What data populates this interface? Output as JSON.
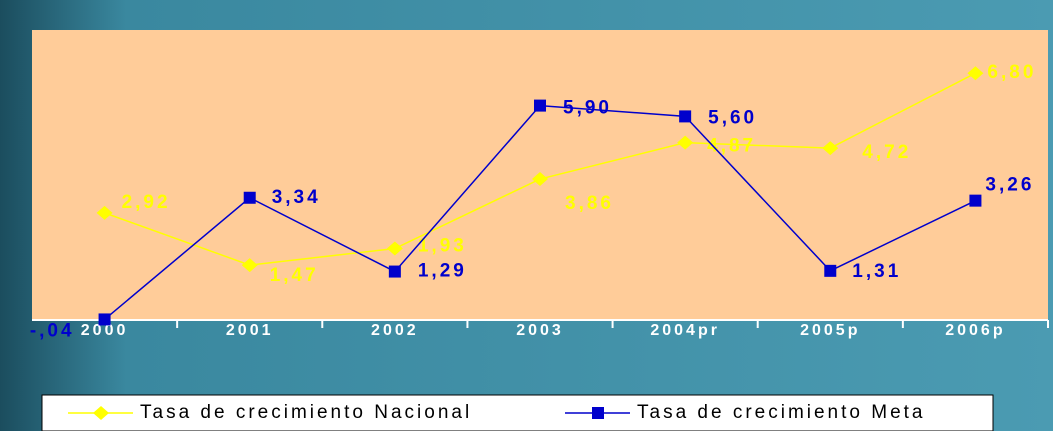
{
  "chart_data": {
    "type": "line",
    "categories": [
      "2000",
      "2001",
      "2002",
      "2003",
      "2004pr",
      "2005p",
      "2006p"
    ],
    "series": [
      {
        "name": "Tasa de crecimiento Nacional",
        "color": "#ffff00",
        "values": [
          2.92,
          1.47,
          1.93,
          3.86,
          4.87,
          4.72,
          6.8
        ],
        "value_labels": [
          "2,92",
          "1,47",
          "1,93",
          "3,86",
          "4,87",
          "4,72",
          "6,80"
        ]
      },
      {
        "name": "Tasa de crecimiento Meta",
        "color": "#0000cc",
        "values": [
          -0.04,
          3.34,
          1.29,
          5.9,
          5.6,
          1.31,
          3.26
        ],
        "value_labels": [
          "-,04",
          "3,34",
          "1,29",
          "5,90",
          "5,60",
          "1,31",
          "3,26"
        ]
      }
    ],
    "ylim": [
      0,
      8
    ]
  }
}
